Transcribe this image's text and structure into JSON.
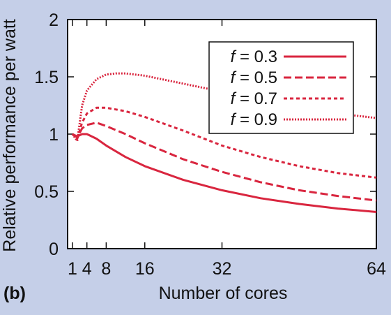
{
  "panel_label": "(b)",
  "chart_data": {
    "type": "line",
    "xlabel": "Number of cores",
    "ylabel": "Relative performance per watt",
    "xlim": [
      0,
      64
    ],
    "ylim": [
      0,
      2
    ],
    "xticks": [
      1,
      4,
      8,
      16,
      32,
      64
    ],
    "yticks": [
      0,
      0.5,
      1,
      1.5,
      2
    ],
    "ytick_labels": [
      "0",
      "0.5",
      "1",
      "1.5",
      "2"
    ],
    "grid": false,
    "legend_position": "top-right",
    "line_color": "#d9263f",
    "series": [
      {
        "name": "f = 0.3",
        "legend_italic": "f",
        "legend_rest": " = 0.3",
        "dash": "solid",
        "x": [
          1,
          2,
          3,
          4,
          6,
          8,
          12,
          16,
          24,
          32,
          40,
          48,
          56,
          64
        ],
        "y": [
          1.0,
          0.98,
          1.0,
          1.0,
          0.96,
          0.9,
          0.8,
          0.72,
          0.6,
          0.51,
          0.44,
          0.39,
          0.35,
          0.32
        ]
      },
      {
        "name": "f = 0.5",
        "legend_italic": "f",
        "legend_rest": " = 0.5",
        "dash": "dashed",
        "x": [
          1,
          2,
          3,
          4,
          6,
          8,
          12,
          16,
          24,
          32,
          40,
          48,
          56,
          64
        ],
        "y": [
          1.0,
          0.97,
          1.05,
          1.08,
          1.1,
          1.07,
          1.0,
          0.92,
          0.78,
          0.67,
          0.58,
          0.51,
          0.46,
          0.42
        ]
      },
      {
        "name": "f = 0.7",
        "legend_italic": "f",
        "legend_rest": " = 0.7",
        "dash": "dotted-dash",
        "x": [
          1,
          2,
          3,
          4,
          6,
          8,
          12,
          16,
          24,
          32,
          40,
          48,
          56,
          64
        ],
        "y": [
          1.0,
          0.96,
          1.1,
          1.18,
          1.23,
          1.23,
          1.2,
          1.15,
          1.03,
          0.9,
          0.8,
          0.72,
          0.66,
          0.62
        ]
      },
      {
        "name": "f = 0.9",
        "legend_italic": "f",
        "legend_rest": " = 0.9",
        "dash": "dotted",
        "x": [
          1,
          2,
          3,
          4,
          6,
          8,
          10,
          12,
          16,
          24,
          32,
          40,
          48,
          56,
          64
        ],
        "y": [
          1.0,
          0.94,
          1.25,
          1.38,
          1.48,
          1.52,
          1.53,
          1.53,
          1.51,
          1.44,
          1.37,
          1.3,
          1.24,
          1.18,
          1.14
        ]
      }
    ]
  }
}
